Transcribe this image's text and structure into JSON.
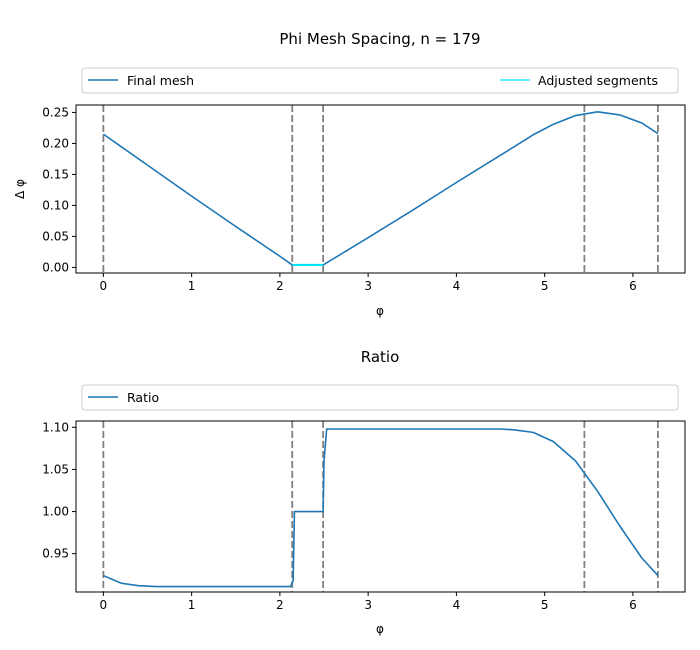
{
  "chart_data": [
    {
      "type": "line",
      "title": "Phi Mesh Spacing, n = 179",
      "xlabel": "φ",
      "ylabel": "Δ φ",
      "xlim": [
        -0.31,
        6.59
      ],
      "ylim": [
        -0.009,
        0.262
      ],
      "xticks": [
        0,
        1,
        2,
        3,
        4,
        5,
        6
      ],
      "xtick_labels": [
        "0",
        "1",
        "2",
        "3",
        "4",
        "5",
        "6"
      ],
      "yticks": [
        0.0,
        0.05,
        0.1,
        0.15,
        0.2,
        0.25
      ],
      "ytick_labels": [
        "0.00",
        "0.05",
        "0.10",
        "0.15",
        "0.20",
        "0.25"
      ],
      "grid": false,
      "legend_placement": "above plot, full width",
      "vlines": [
        0.0,
        2.14,
        2.49,
        5.45,
        6.283
      ],
      "series": [
        {
          "name": "Final mesh",
          "color": "#1f77b4",
          "x": [
            0.0,
            0.2,
            0.5,
            1.0,
            1.5,
            2.0,
            2.14,
            2.49,
            3.0,
            3.5,
            4.0,
            4.5,
            4.87,
            5.1,
            5.35,
            5.6,
            5.85,
            6.1,
            6.283
          ],
          "y": [
            0.215,
            0.195,
            0.165,
            0.115,
            0.066,
            0.018,
            0.004,
            0.004,
            0.048,
            0.092,
            0.137,
            0.181,
            0.214,
            0.231,
            0.245,
            0.251,
            0.246,
            0.233,
            0.216
          ]
        },
        {
          "name": "Adjusted segments",
          "color": "#00e5ff",
          "x": [
            2.14,
            2.49
          ],
          "y": [
            0.004,
            0.004
          ]
        }
      ]
    },
    {
      "type": "line",
      "title": "Ratio",
      "xlabel": "φ",
      "ylabel": "",
      "xlim": [
        -0.31,
        6.59
      ],
      "ylim": [
        0.9045,
        1.1075
      ],
      "xticks": [
        0,
        1,
        2,
        3,
        4,
        5,
        6
      ],
      "xtick_labels": [
        "0",
        "1",
        "2",
        "3",
        "4",
        "5",
        "6"
      ],
      "yticks": [
        0.95,
        1.0,
        1.05,
        1.1
      ],
      "ytick_labels": [
        "0.95",
        "1.00",
        "1.05",
        "1.10"
      ],
      "grid": false,
      "legend_placement": "above plot, full width",
      "vlines": [
        0.0,
        2.14,
        2.49,
        5.45,
        6.283
      ],
      "series": [
        {
          "name": "Ratio",
          "color": "#1f77b4",
          "x": [
            0.0,
            0.2,
            0.4,
            0.6,
            1.0,
            1.5,
            2.0,
            2.12,
            2.15,
            2.165,
            2.2,
            2.49,
            2.5,
            2.53,
            3.0,
            4.0,
            4.5,
            4.65,
            4.87,
            5.1,
            5.35,
            5.6,
            5.85,
            6.1,
            6.283
          ],
          "y": [
            0.924,
            0.915,
            0.912,
            0.911,
            0.911,
            0.911,
            0.911,
            0.911,
            0.918,
            1.0,
            1.0,
            1.0,
            1.06,
            1.098,
            1.098,
            1.098,
            1.098,
            1.097,
            1.094,
            1.083,
            1.06,
            1.024,
            0.983,
            0.945,
            0.924
          ]
        }
      ]
    }
  ]
}
